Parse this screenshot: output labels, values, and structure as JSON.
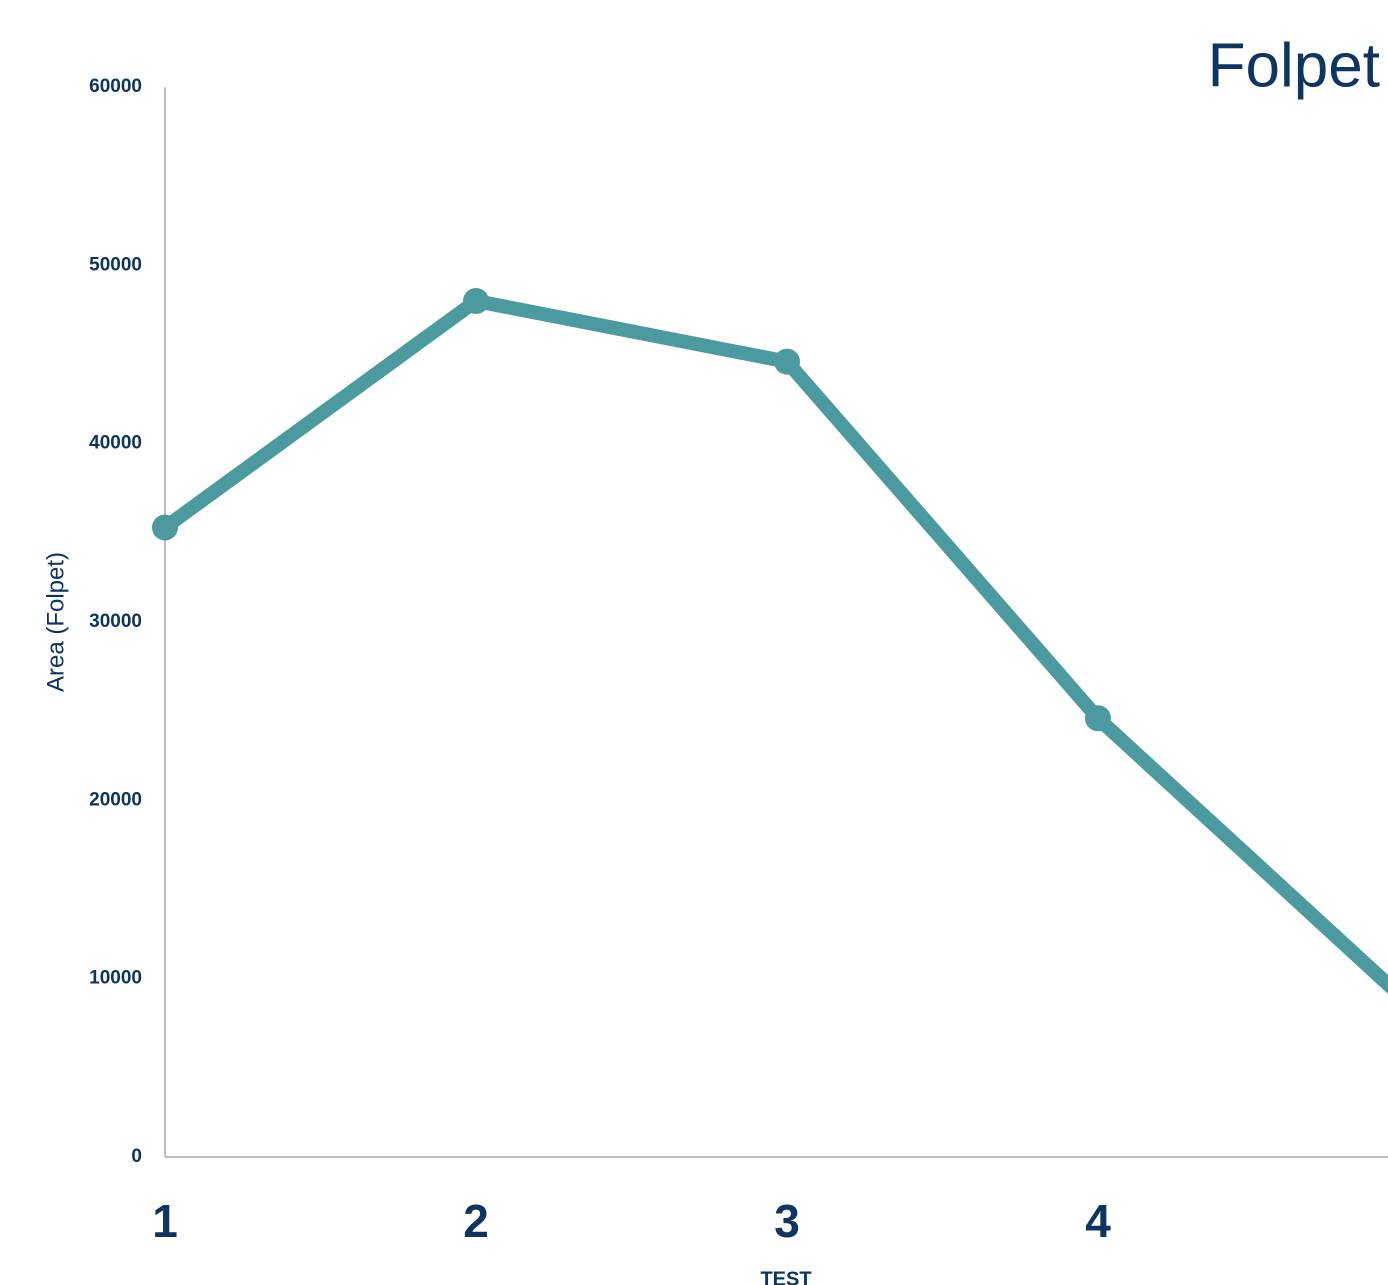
{
  "chart_data": {
    "type": "line",
    "title": "Folpet",
    "x_label": "TEST",
    "y_label": "Area (Folpet)",
    "categories": [
      "1",
      "2",
      "3",
      "4",
      null
    ],
    "series": [
      {
        "name": "Folpet",
        "color": "#4a9aa0",
        "values": [
          35300,
          48000,
          44600,
          24600,
          8600
        ]
      }
    ],
    "ylim": [
      0,
      60000
    ],
    "yticks": [
      0,
      10000,
      20000,
      30000,
      40000,
      50000,
      60000
    ],
    "grid": false,
    "legend": false
  }
}
